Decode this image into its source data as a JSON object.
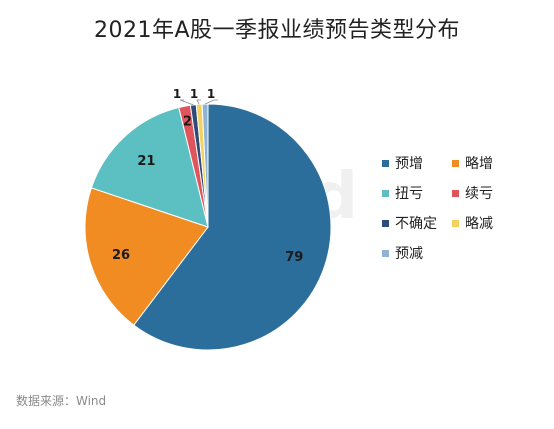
{
  "chart_data": {
    "type": "pie",
    "title": "2021年A股一季报业绩预告类型分布",
    "categories": [
      "预增",
      "略增",
      "扭亏",
      "续亏",
      "不确定",
      "略减",
      "预减"
    ],
    "values": [
      79,
      26,
      21,
      2,
      1,
      1,
      1
    ],
    "colors": [
      "#2c6e9b",
      "#f08c22",
      "#5cbfc1",
      "#e0555c",
      "#2e4b7a",
      "#f3d35e",
      "#8fb4d3"
    ],
    "legend_position": "right"
  },
  "watermark": "Wind",
  "source_label": "数据来源：Wind"
}
